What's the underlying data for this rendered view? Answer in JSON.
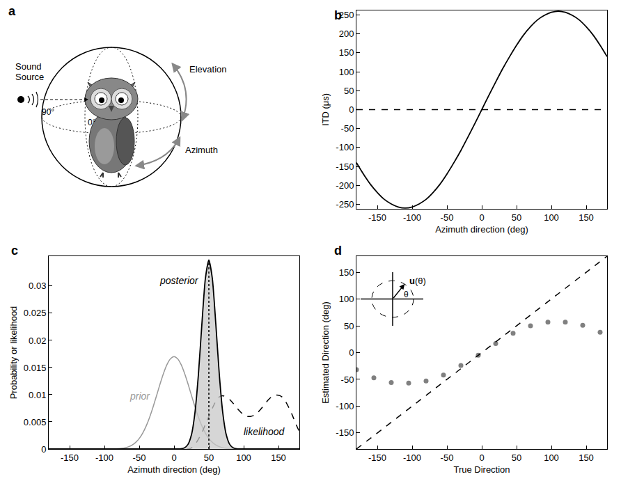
{
  "diagram": {
    "panel": "a",
    "labels": {
      "source": "Sound Source",
      "elevation": "Elevation",
      "azimuth": "Azimuth",
      "deg90": "90°",
      "deg0": "0°"
    }
  },
  "chart_data": [
    {
      "panel": "b",
      "type": "line",
      "x_label": "Azimuth direction (deg)",
      "y_label": "ITD (μs)",
      "x": [
        -180,
        -170,
        -160,
        -150,
        -140,
        -130,
        -120,
        -110,
        -100,
        -90,
        -80,
        -70,
        -60,
        -50,
        -40,
        -30,
        -20,
        -10,
        0,
        10,
        20,
        30,
        40,
        50,
        60,
        70,
        80,
        90,
        100,
        110,
        120,
        130,
        140,
        150,
        160,
        170,
        180
      ],
      "series": [
        {
          "color": "#000000",
          "line_style": "solid",
          "values": [
            -140,
            -170,
            -197,
            -219,
            -237,
            -249,
            -257,
            -260,
            -257,
            -249,
            -237,
            -219,
            -197,
            -170,
            -140,
            -108,
            -73,
            -37,
            0,
            37,
            73,
            108,
            140,
            170,
            197,
            219,
            237,
            249,
            257,
            260,
            257,
            249,
            237,
            219,
            197,
            170,
            140
          ]
        },
        {
          "color": "#000000",
          "line_style": "dash",
          "x": [
            -180,
            180
          ],
          "values": [
            0,
            0
          ]
        }
      ],
      "xlim": [
        -180,
        180
      ],
      "ylim": [
        -262,
        262
      ],
      "xticks": [
        -150,
        -100,
        -50,
        0,
        50,
        100,
        150
      ],
      "yticks": [
        -250,
        -200,
        -150,
        -100,
        -50,
        0,
        50,
        100,
        150,
        200,
        250
      ],
      "grid": false
    },
    {
      "panel": "c",
      "type": "line",
      "x_label": "Azimuth direction (deg)",
      "y_label": "Probability or likelihood",
      "x": [
        -180,
        -175,
        -170,
        -165,
        -160,
        -155,
        -150,
        -145,
        -140,
        -135,
        -130,
        -125,
        -120,
        -115,
        -110,
        -105,
        -100,
        -95,
        -90,
        -85,
        -80,
        -75,
        -70,
        -65,
        -60,
        -55,
        -50,
        -45,
        -40,
        -35,
        -30,
        -25,
        -20,
        -15,
        -10,
        -5,
        0,
        5,
        10,
        15,
        20,
        25,
        30,
        35,
        40,
        45,
        50,
        55,
        60,
        65,
        70,
        75,
        80,
        85,
        90,
        95,
        100,
        105,
        110,
        115,
        120,
        125,
        130,
        135,
        140,
        145,
        150,
        155,
        160,
        165,
        170,
        175,
        180
      ],
      "series": [
        {
          "name": "prior",
          "color": "#999999",
          "line_style": "solid",
          "values": [
            0,
            0,
            0,
            0,
            0,
            0,
            0,
            0,
            0,
            0,
            0,
            0,
            0,
            0,
            0,
            0,
            0,
            0,
            1e-05,
            3e-05,
            7e-05,
            0.00013,
            0.00024,
            0.00043,
            0.00075,
            0.00123,
            0.00194,
            0.00293,
            0.00424,
            0.00587,
            0.00778,
            0.00988,
            0.01201,
            0.01398,
            0.01559,
            0.01663,
            0.017,
            0.01663,
            0.01559,
            0.01398,
            0.01201,
            0.00988,
            0.00778,
            0.00587,
            0.00424,
            0.00293,
            0.00194,
            0.00123,
            0.00075,
            0.00043,
            0.00024,
            0.00013,
            7e-05,
            3e-05,
            1e-05,
            0,
            0,
            0,
            0,
            0,
            0,
            0,
            0,
            0,
            0,
            0,
            0,
            0,
            0,
            0,
            0,
            0,
            0
          ]
        },
        {
          "name": "likelihood",
          "color": "#000000",
          "line_style": "dash",
          "values": [
            0,
            0,
            0,
            0,
            0,
            0,
            0,
            0,
            0,
            0,
            0,
            0,
            0,
            0,
            0,
            0,
            0,
            0,
            0,
            0,
            0,
            0,
            0,
            0,
            0,
            0,
            0,
            0,
            0,
            0,
            0,
            0,
            0,
            0,
            0,
            0,
            0,
            0,
            0,
            0,
            0,
            0.0002,
            0.0008,
            0.0018,
            0.003,
            0.0045,
            0.006,
            0.0075,
            0.0088,
            0.0096,
            0.0098,
            0.0096,
            0.0091,
            0.0084,
            0.0076,
            0.0069,
            0.0063,
            0.006,
            0.006,
            0.0062,
            0.0067,
            0.0074,
            0.0082,
            0.009,
            0.0096,
            0.0099,
            0.0099,
            0.0096,
            0.0088,
            0.0076,
            0.0062,
            0.0046,
            0.0032
          ]
        },
        {
          "name": "posterior",
          "color": "#000000",
          "line_style": "solid",
          "values": [
            0,
            0,
            0,
            0,
            0,
            0,
            0,
            0,
            0,
            0,
            0,
            0,
            0,
            0,
            0,
            0,
            0,
            0,
            0,
            0,
            0,
            0,
            0,
            0,
            0,
            0,
            0,
            0,
            0,
            0,
            0,
            0,
            0,
            0,
            0,
            0,
            0,
            1e-05,
            5e-05,
            0.00022,
            0.00085,
            0.00263,
            0.00666,
            0.01373,
            0.02302,
            0.03139,
            0.0348,
            0.03139,
            0.02302,
            0.01373,
            0.00666,
            0.00263,
            0.00085,
            0.00022,
            5e-05,
            1e-05,
            0,
            0,
            0,
            0,
            0,
            0,
            0,
            0,
            0,
            0,
            0,
            0,
            0,
            0,
            0,
            0,
            0
          ]
        },
        {
          "color": "#000000",
          "line_style": "dot",
          "x": [
            50,
            50
          ],
          "values": [
            0,
            0.0348
          ]
        }
      ],
      "xlim": [
        -180,
        180
      ],
      "ylim": [
        0,
        0.0355
      ],
      "xticks": [
        -150,
        -100,
        -50,
        0,
        50,
        100,
        150
      ],
      "yticks": [
        0,
        0.005,
        0.01,
        0.015,
        0.02,
        0.025,
        0.03
      ],
      "grid": false
    },
    {
      "panel": "d",
      "type": "scatter",
      "x_label": "True Direction",
      "y_label": "Estimated Direction (deg)",
      "x": [
        -180,
        -155,
        -130,
        -105,
        -80,
        -55,
        -30,
        -5,
        20,
        45,
        70,
        95,
        120,
        145,
        170
      ],
      "series": [
        {
          "type": "scatter",
          "color": "#808080",
          "marker": "circle",
          "values": [
            -32,
            -47,
            -56,
            -57,
            -53,
            -42,
            -24,
            -5,
            17,
            36,
            50,
            57,
            57,
            51,
            38
          ]
        },
        {
          "type": "line",
          "color": "#000000",
          "line_style": "dash",
          "x": [
            -180,
            180
          ],
          "values": [
            -180,
            180
          ]
        }
      ],
      "inset": {
        "vector_label": "u(θ)",
        "angle_label": "θ"
      },
      "xlim": [
        -180,
        180
      ],
      "ylim": [
        -180,
        180
      ],
      "xticks": [
        -150,
        -100,
        -50,
        0,
        50,
        100,
        150
      ],
      "yticks": [
        -150,
        -100,
        -50,
        0,
        50,
        100,
        150
      ],
      "grid": false
    }
  ]
}
